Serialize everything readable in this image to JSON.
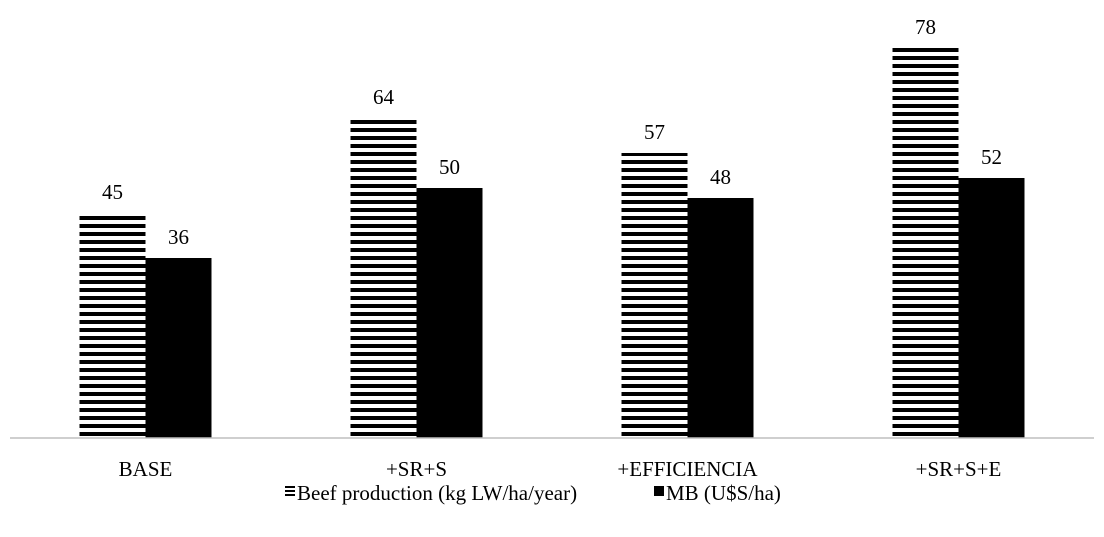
{
  "chart_data": {
    "type": "bar",
    "title": "",
    "xlabel": "",
    "ylabel": "",
    "categories": [
      "BASE",
      "+SR+S",
      "+EFFICIENCIA",
      "+SR+S+E"
    ],
    "series": [
      {
        "name": "Beef production (kg LW/ha/year)",
        "values": [
          45,
          64,
          57,
          78
        ],
        "pattern": "horizontal-stripes",
        "color": "#000000"
      },
      {
        "name": "MB (U$S/ha)",
        "values": [
          36,
          50,
          48,
          52
        ],
        "pattern": "solid",
        "color": "#000000"
      }
    ],
    "data_labels": true,
    "ylim": [
      0,
      80
    ],
    "y_axis_visible": false,
    "grid": false,
    "legend_position": "bottom",
    "colors": {
      "bar": "#000000",
      "axis": "#bfbfbf",
      "background": "#ffffff"
    }
  }
}
